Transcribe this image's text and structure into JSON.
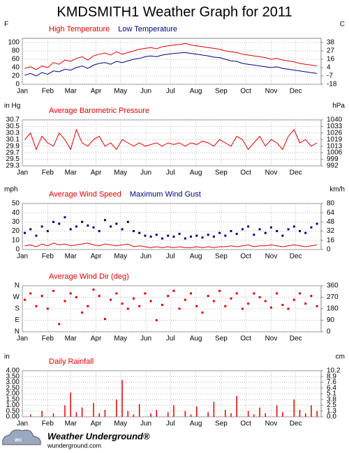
{
  "title": "KMDSMITH1 Weather Graph for 2011",
  "footer": {
    "brand": "Weather Underground®",
    "url": "wunderground.com"
  },
  "chart_data": [
    {
      "type": "line",
      "y_label": "F",
      "y2_label": "C",
      "grid": true,
      "x": [
        4,
        11,
        18,
        25,
        32,
        39,
        46,
        53,
        60,
        67,
        74,
        81,
        88,
        95,
        102,
        109,
        116,
        123,
        130,
        137,
        144,
        151,
        158,
        165,
        172,
        179,
        186,
        193,
        200,
        207,
        214,
        221,
        228,
        235,
        242,
        249,
        256,
        263,
        270,
        277,
        284,
        291,
        298,
        305,
        312,
        319,
        326,
        333,
        340,
        347,
        354,
        361
      ],
      "xlim": [
        1,
        366
      ],
      "xticks": [
        {
          "value": 1,
          "label": "Jan"
        },
        {
          "value": 32,
          "label": "Feb"
        },
        {
          "value": 60,
          "label": "Mar"
        },
        {
          "value": 91,
          "label": "Apr"
        },
        {
          "value": 121,
          "label": "May"
        },
        {
          "value": 152,
          "label": "Jun"
        },
        {
          "value": 182,
          "label": "Jul"
        },
        {
          "value": 213,
          "label": "Aug"
        },
        {
          "value": 244,
          "label": "Sep"
        },
        {
          "value": 274,
          "label": "Oct"
        },
        {
          "value": 305,
          "label": "Nov"
        },
        {
          "value": 335,
          "label": "Dec"
        }
      ],
      "ylim": [
        0,
        110
      ],
      "yticks": [
        0,
        20,
        40,
        60,
        80,
        100
      ],
      "y2lim": [
        -17.8,
        43.3
      ],
      "y2ticks": [
        {
          "value": -17.8,
          "label": "-18"
        },
        {
          "value": -6.7,
          "label": "-7"
        },
        {
          "value": 4.4,
          "label": "4"
        },
        {
          "value": 15.6,
          "label": "16"
        },
        {
          "value": 26.7,
          "label": "27"
        },
        {
          "value": 37.8,
          "label": "38"
        }
      ],
      "series": [
        {
          "name": "High Temperature",
          "color": "#dd0000",
          "mark": "line",
          "values": [
            38,
            42,
            35,
            44,
            40,
            52,
            48,
            58,
            55,
            62,
            66,
            58,
            68,
            72,
            75,
            70,
            78,
            72,
            76,
            80,
            84,
            86,
            88,
            85,
            90,
            92,
            94,
            95,
            98,
            94,
            92,
            90,
            88,
            86,
            84,
            80,
            78,
            76,
            72,
            70,
            68,
            66,
            64,
            60,
            62,
            58,
            56,
            54,
            50,
            48,
            46,
            44
          ]
        },
        {
          "name": "Low Temperature",
          "color": "#000080",
          "mark": "line",
          "values": [
            22,
            26,
            20,
            28,
            24,
            32,
            30,
            36,
            34,
            40,
            44,
            38,
            46,
            50,
            52,
            48,
            55,
            52,
            56,
            60,
            62,
            66,
            68,
            66,
            70,
            72,
            74,
            75,
            76,
            74,
            72,
            70,
            68,
            65,
            64,
            60,
            56,
            55,
            50,
            48,
            46,
            44,
            42,
            40,
            42,
            38,
            36,
            34,
            32,
            30,
            28,
            26
          ]
        }
      ]
    },
    {
      "type": "line",
      "y_label": "in Hg",
      "y2_label": "hPa",
      "grid": true,
      "x": [
        4,
        11,
        18,
        25,
        32,
        39,
        46,
        53,
        60,
        67,
        74,
        81,
        88,
        95,
        102,
        109,
        116,
        123,
        130,
        137,
        144,
        151,
        158,
        165,
        172,
        179,
        186,
        193,
        200,
        207,
        214,
        221,
        228,
        235,
        242,
        249,
        256,
        263,
        270,
        277,
        284,
        291,
        298,
        305,
        312,
        319,
        326,
        333,
        340,
        347,
        354,
        361
      ],
      "xlim": [
        1,
        366
      ],
      "xticks": [
        {
          "value": 1,
          "label": "Jan"
        },
        {
          "value": 32,
          "label": "Feb"
        },
        {
          "value": 60,
          "label": "Mar"
        },
        {
          "value": 91,
          "label": "Apr"
        },
        {
          "value": 121,
          "label": "May"
        },
        {
          "value": 152,
          "label": "Jun"
        },
        {
          "value": 182,
          "label": "Jul"
        },
        {
          "value": 213,
          "label": "Aug"
        },
        {
          "value": 244,
          "label": "Sep"
        },
        {
          "value": 274,
          "label": "Oct"
        },
        {
          "value": 305,
          "label": "Nov"
        },
        {
          "value": 335,
          "label": "Dec"
        }
      ],
      "ylim": [
        29.3,
        30.7
      ],
      "yticks": [
        29.3,
        29.5,
        29.7,
        29.9,
        30.1,
        30.3,
        30.5,
        30.7
      ],
      "y2lim": [
        992.2,
        1039.6
      ],
      "y2ticks": [
        {
          "value": 992.2,
          "label": "992"
        },
        {
          "value": 999,
          "label": "999"
        },
        {
          "value": 1005.8,
          "label": "1006"
        },
        {
          "value": 1012.5,
          "label": "1013"
        },
        {
          "value": 1019.3,
          "label": "1019"
        },
        {
          "value": 1026.1,
          "label": "1026"
        },
        {
          "value": 1032.8,
          "label": "1033"
        },
        {
          "value": 1039.6,
          "label": "1040"
        }
      ],
      "series": [
        {
          "name": "Average Barometric Pressure",
          "color": "#dd0000",
          "mark": "line",
          "values": [
            30.1,
            30.3,
            29.8,
            30.2,
            30.0,
            29.9,
            30.3,
            30.1,
            29.8,
            30.4,
            30.0,
            29.9,
            30.1,
            30.2,
            29.9,
            30.0,
            29.8,
            30.1,
            30.0,
            29.9,
            30.0,
            29.9,
            29.95,
            30.0,
            29.9,
            30.0,
            29.95,
            30.0,
            29.9,
            30.0,
            29.95,
            30.05,
            30.0,
            29.9,
            30.1,
            30.0,
            29.9,
            30.2,
            30.1,
            29.8,
            30.0,
            30.2,
            29.9,
            30.1,
            30.0,
            29.8,
            30.2,
            30.4,
            30.0,
            30.1,
            29.9,
            30.0
          ]
        }
      ]
    },
    {
      "type": "line",
      "y_label": "mph",
      "y2_label": "km/h",
      "grid": true,
      "x": [
        4,
        11,
        18,
        25,
        32,
        39,
        46,
        53,
        60,
        67,
        74,
        81,
        88,
        95,
        102,
        109,
        116,
        123,
        130,
        137,
        144,
        151,
        158,
        165,
        172,
        179,
        186,
        193,
        200,
        207,
        214,
        221,
        228,
        235,
        242,
        249,
        256,
        263,
        270,
        277,
        284,
        291,
        298,
        305,
        312,
        319,
        326,
        333,
        340,
        347,
        354,
        361
      ],
      "xlim": [
        1,
        366
      ],
      "xticks": [
        {
          "value": 1,
          "label": "Jan"
        },
        {
          "value": 32,
          "label": "Feb"
        },
        {
          "value": 60,
          "label": "Mar"
        },
        {
          "value": 91,
          "label": "Apr"
        },
        {
          "value": 121,
          "label": "May"
        },
        {
          "value": 152,
          "label": "Jun"
        },
        {
          "value": 182,
          "label": "Jul"
        },
        {
          "value": 213,
          "label": "Aug"
        },
        {
          "value": 244,
          "label": "Sep"
        },
        {
          "value": 274,
          "label": "Oct"
        },
        {
          "value": 305,
          "label": "Nov"
        },
        {
          "value": 335,
          "label": "Dec"
        }
      ],
      "ylim": [
        0,
        50
      ],
      "yticks": [
        0,
        10,
        20,
        30,
        40,
        50
      ],
      "y2lim": [
        0,
        80.5
      ],
      "y2ticks": [
        0,
        {
          "value": 16.1,
          "label": "16"
        },
        {
          "value": 32.2,
          "label": "32"
        },
        {
          "value": 48.3,
          "label": "48"
        },
        {
          "value": 64.4,
          "label": "64"
        },
        {
          "value": 80.5,
          "label": "80"
        }
      ],
      "series": [
        {
          "name": "Average Wind Speed",
          "color": "#dd0000",
          "mark": "line",
          "values": [
            4,
            5,
            3,
            6,
            4,
            7,
            5,
            6,
            4,
            5,
            6,
            7,
            5,
            4,
            6,
            5,
            4,
            5,
            6,
            3,
            4,
            3,
            2,
            3,
            2,
            3,
            2,
            3,
            2,
            2,
            3,
            2,
            3,
            2,
            3,
            3,
            4,
            3,
            4,
            5,
            3,
            4,
            4,
            5,
            4,
            3,
            4,
            5,
            4,
            3,
            4,
            5
          ]
        },
        {
          "name": "Maximum Wind Gust",
          "color": "#000080",
          "mark": "points",
          "values": [
            18,
            22,
            15,
            25,
            20,
            30,
            28,
            35,
            22,
            25,
            30,
            26,
            24,
            20,
            32,
            25,
            28,
            22,
            30,
            20,
            18,
            15,
            14,
            16,
            12,
            15,
            14,
            17,
            12,
            14,
            15,
            13,
            16,
            14,
            18,
            15,
            20,
            17,
            22,
            25,
            16,
            22,
            18,
            24,
            20,
            15,
            22,
            25,
            20,
            18,
            24,
            28
          ]
        }
      ]
    },
    {
      "type": "scatter",
      "grid": true,
      "x": [
        4,
        11,
        18,
        25,
        32,
        39,
        46,
        53,
        60,
        67,
        74,
        81,
        88,
        95,
        102,
        109,
        116,
        123,
        130,
        137,
        144,
        151,
        158,
        165,
        172,
        179,
        186,
        193,
        200,
        207,
        214,
        221,
        228,
        235,
        242,
        249,
        256,
        263,
        270,
        277,
        284,
        291,
        298,
        305,
        312,
        319,
        326,
        333,
        340,
        347,
        354,
        361
      ],
      "xlim": [
        1,
        366
      ],
      "xticks": [
        {
          "value": 1,
          "label": "Jan"
        },
        {
          "value": 32,
          "label": "Feb"
        },
        {
          "value": 60,
          "label": "Mar"
        },
        {
          "value": 91,
          "label": "Apr"
        },
        {
          "value": 121,
          "label": "May"
        },
        {
          "value": 152,
          "label": "Jun"
        },
        {
          "value": 182,
          "label": "Jul"
        },
        {
          "value": 213,
          "label": "Aug"
        },
        {
          "value": 244,
          "label": "Sep"
        },
        {
          "value": 274,
          "label": "Oct"
        },
        {
          "value": 305,
          "label": "Nov"
        },
        {
          "value": 335,
          "label": "Dec"
        }
      ],
      "ylim": [
        0,
        360
      ],
      "yticks": [
        {
          "value": 0,
          "label": "N"
        },
        {
          "value": 90,
          "label": "E"
        },
        {
          "value": 180,
          "label": "S"
        },
        {
          "value": 270,
          "label": "W"
        },
        {
          "value": 360,
          "label": "N"
        }
      ],
      "y2lim": [
        0,
        360
      ],
      "y2ticks": [
        0,
        90,
        180,
        270,
        360
      ],
      "series": [
        {
          "name": "Average Wind Dir (deg)",
          "color": "#dd0000",
          "mark": "points",
          "values": [
            250,
            300,
            200,
            280,
            180,
            320,
            60,
            240,
            300,
            270,
            150,
            200,
            330,
            280,
            100,
            250,
            300,
            220,
            180,
            260,
            200,
            300,
            240,
            90,
            210,
            280,
            320,
            180,
            250,
            300,
            200,
            150,
            280,
            240,
            320,
            200,
            260,
            300,
            180,
            220,
            300,
            270,
            240,
            190,
            300,
            210,
            180,
            250,
            300,
            220,
            280,
            200
          ]
        }
      ]
    },
    {
      "type": "bar",
      "y_label": "in",
      "y2_label": "cm",
      "grid": true,
      "x": [
        4,
        11,
        18,
        25,
        32,
        39,
        46,
        53,
        60,
        67,
        74,
        81,
        88,
        95,
        102,
        109,
        116,
        123,
        130,
        137,
        144,
        151,
        158,
        165,
        172,
        179,
        186,
        193,
        200,
        207,
        214,
        221,
        228,
        235,
        242,
        249,
        256,
        263,
        270,
        277,
        284,
        291,
        298,
        305,
        312,
        319,
        326,
        333,
        340,
        347,
        354,
        361
      ],
      "xlim": [
        1,
        366
      ],
      "xticks": [
        {
          "value": 1,
          "label": "Jan"
        },
        {
          "value": 32,
          "label": "Feb"
        },
        {
          "value": 60,
          "label": "Mar"
        },
        {
          "value": 91,
          "label": "Apr"
        },
        {
          "value": 121,
          "label": "May"
        },
        {
          "value": 152,
          "label": "Jun"
        },
        {
          "value": 182,
          "label": "Jul"
        },
        {
          "value": 213,
          "label": "Aug"
        },
        {
          "value": 244,
          "label": "Sep"
        },
        {
          "value": 274,
          "label": "Oct"
        },
        {
          "value": 305,
          "label": "Nov"
        },
        {
          "value": 335,
          "label": "Dec"
        }
      ],
      "ylim": [
        0,
        4
      ],
      "yticks": [
        {
          "value": 0,
          "label": "0.00"
        },
        {
          "value": 0.5,
          "label": "0.50"
        },
        {
          "value": 1,
          "label": "1.00"
        },
        {
          "value": 1.5,
          "label": "1.50"
        },
        {
          "value": 2,
          "label": "2.00"
        },
        {
          "value": 2.5,
          "label": "2.50"
        },
        {
          "value": 3,
          "label": "3.00"
        },
        {
          "value": 3.5,
          "label": "3.50"
        },
        {
          "value": 4,
          "label": "4.00"
        }
      ],
      "y2lim": [
        0,
        10.16
      ],
      "y2ticks": [
        {
          "value": 0,
          "label": "0.0"
        },
        {
          "value": 1.27,
          "label": "1.3"
        },
        {
          "value": 2.54,
          "label": "2.5"
        },
        {
          "value": 3.81,
          "label": "3.8"
        },
        {
          "value": 5.08,
          "label": "5.1"
        },
        {
          "value": 6.35,
          "label": "6.4"
        },
        {
          "value": 7.62,
          "label": "7.6"
        },
        {
          "value": 8.89,
          "label": "8.9"
        },
        {
          "value": 10.16,
          "label": "10.2"
        }
      ],
      "series": [
        {
          "name": "Daily Rainfall",
          "color": "#dd0000",
          "mark": "bars",
          "values": [
            0,
            0.2,
            0,
            0.5,
            0,
            0.3,
            0,
            1.0,
            2.1,
            0.4,
            0.8,
            0,
            1.2,
            0.3,
            0.6,
            0,
            1.5,
            3.2,
            0.5,
            0.2,
            1.1,
            0,
            0.3,
            0.6,
            0,
            0.4,
            1.0,
            0,
            0.5,
            0.2,
            0.9,
            0,
            0.4,
            1.3,
            0,
            0.6,
            0.3,
            1.8,
            0,
            0.5,
            0.2,
            0.8,
            0.3,
            0,
            1.0,
            0.4,
            0,
            1.5,
            0.6,
            0.3,
            1.0,
            0.5
          ]
        }
      ]
    }
  ]
}
